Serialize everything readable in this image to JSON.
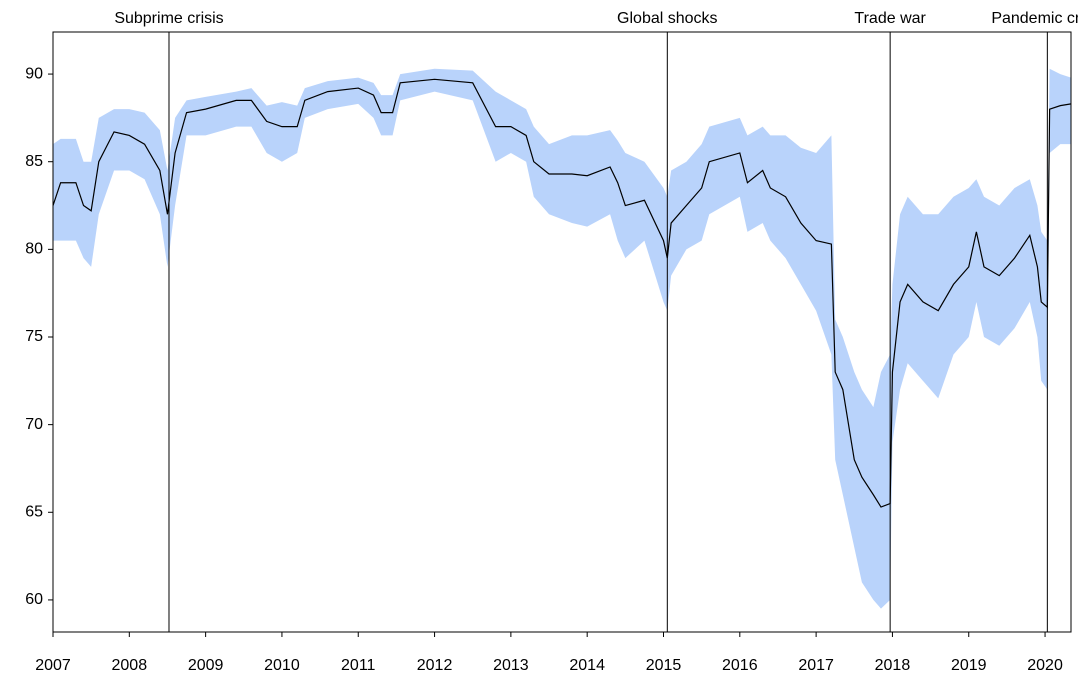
{
  "chart_data": {
    "type": "line",
    "color": "#000000",
    "band_color": "#b9d3fb",
    "x": [
      2007.0,
      2007.1,
      2007.3,
      2007.4,
      2007.5,
      2007.6,
      2007.8,
      2008.0,
      2008.2,
      2008.4,
      2008.5,
      2008.6,
      2008.75,
      2009.0,
      2009.4,
      2009.6,
      2009.8,
      2010.0,
      2010.2,
      2010.3,
      2010.6,
      2011.0,
      2011.2,
      2011.3,
      2011.45,
      2011.55,
      2012.0,
      2012.5,
      2012.8,
      2013.0,
      2013.2,
      2013.3,
      2013.5,
      2013.8,
      2014.0,
      2014.3,
      2014.4,
      2014.5,
      2014.75,
      2015.0,
      2015.05,
      2015.1,
      2015.3,
      2015.5,
      2015.6,
      2016.0,
      2016.1,
      2016.3,
      2016.4,
      2016.6,
      2016.8,
      2017.0,
      2017.2,
      2017.25,
      2017.35,
      2017.5,
      2017.6,
      2017.75,
      2017.85,
      2017.97,
      2018.0,
      2018.1,
      2018.2,
      2018.4,
      2018.6,
      2018.8,
      2019.0,
      2019.1,
      2019.2,
      2019.4,
      2019.6,
      2019.8,
      2019.9,
      2019.95,
      2020.03,
      2020.06,
      2020.2,
      2020.34
    ],
    "values": [
      82.5,
      83.8,
      83.8,
      82.5,
      82.2,
      85,
      86.7,
      86.5,
      86,
      84.5,
      82,
      85.5,
      87.8,
      88,
      88.5,
      88.5,
      87.3,
      87,
      87,
      88.5,
      89,
      89.2,
      88.8,
      87.8,
      87.8,
      89.5,
      89.7,
      89.5,
      87,
      87,
      86.5,
      85,
      84.3,
      84.3,
      84.2,
      84.7,
      83.8,
      82.5,
      82.8,
      80.5,
      79.5,
      81.5,
      82.5,
      83.5,
      85,
      85.5,
      83.8,
      84.5,
      83.5,
      83,
      81.5,
      80.5,
      80.3,
      73,
      72,
      68,
      67,
      66,
      65.3,
      65.5,
      73,
      77,
      78,
      77,
      76.5,
      78,
      79,
      81,
      79,
      78.5,
      79.5,
      80.8,
      79,
      77,
      76.7,
      88,
      88.2,
      88.3
    ],
    "lower": [
      80.5,
      80.5,
      80.5,
      79.5,
      79,
      82,
      84.5,
      84.5,
      84,
      82,
      79,
      82.5,
      86.5,
      86.5,
      87,
      87,
      85.5,
      85,
      85.5,
      87.5,
      88,
      88.3,
      87.5,
      86.5,
      86.5,
      88.5,
      89,
      88.5,
      85,
      85.5,
      85,
      83,
      82,
      81.5,
      81.3,
      82,
      80.5,
      79.5,
      80.5,
      77,
      76.5,
      78.5,
      80,
      80.5,
      82,
      83,
      81,
      81.5,
      80.5,
      79.5,
      78,
      76.5,
      74,
      68,
      66,
      63,
      61,
      60,
      59.5,
      60,
      69,
      72,
      73.5,
      72.5,
      71.5,
      74,
      75,
      77,
      75,
      74.5,
      75.5,
      77,
      75,
      72.5,
      72,
      85.5,
      86,
      86
    ],
    "upper": [
      86,
      86.3,
      86.3,
      85,
      85,
      87.5,
      88,
      88,
      87.8,
      86.8,
      84.5,
      87.5,
      88.5,
      88.7,
      89,
      89.2,
      88.2,
      88.4,
      88.2,
      89.2,
      89.6,
      89.8,
      89.5,
      88.8,
      88.8,
      90,
      90.3,
      90.2,
      89,
      88.5,
      88,
      87,
      86,
      86.5,
      86.5,
      86.8,
      86.2,
      85.5,
      85,
      83.5,
      83,
      84.5,
      85,
      86,
      87,
      87.5,
      86.5,
      87,
      86.5,
      86.5,
      85.8,
      85.5,
      86.5,
      76,
      75,
      73,
      72,
      71,
      73,
      74,
      78,
      82,
      83,
      82,
      82,
      83,
      83.5,
      84,
      83,
      82.5,
      83.5,
      84,
      82.5,
      81,
      80.5,
      90.3,
      90,
      89.8
    ],
    "events": [
      {
        "label": "Subprime crisis",
        "x": 2008.52
      },
      {
        "label": "Global shocks",
        "x": 2015.05
      },
      {
        "label": "Trade war",
        "x": 2017.97
      },
      {
        "label": "Pandemic crisis",
        "x": 2020.03
      }
    ],
    "xlim": [
      2007,
      2020.34
    ],
    "xticks": [
      2007,
      2008,
      2009,
      2010,
      2011,
      2012,
      2013,
      2014,
      2015,
      2016,
      2017,
      2018,
      2019,
      2020
    ],
    "ylim": [
      58.17,
      92.4
    ],
    "yticks": [
      60,
      65,
      70,
      75,
      80,
      85,
      90
    ]
  }
}
